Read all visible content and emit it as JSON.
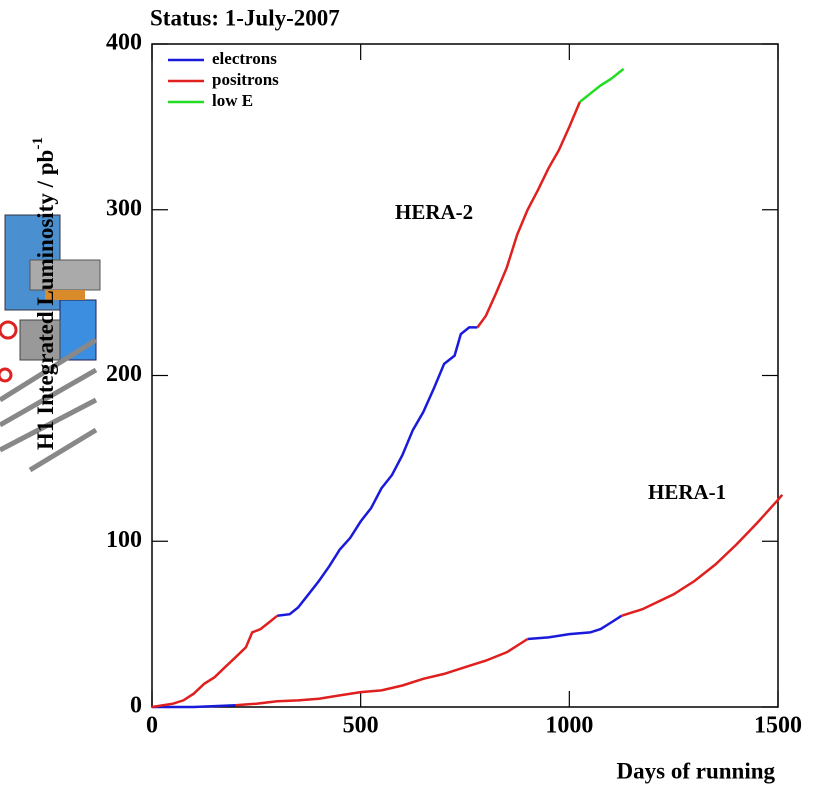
{
  "chart_data": {
    "type": "line",
    "title": "Status:  1-July-2007",
    "ylabel": "H1 Integrated Luminosity / pb",
    "ylabel_superscript": "-1",
    "xlabel": "Days of running",
    "annotations": [
      "HERA-2",
      "HERA-1"
    ],
    "xlim": [
      0,
      1500
    ],
    "ylim": [
      0,
      400
    ],
    "xticks": [
      0,
      500,
      1000,
      1500
    ],
    "yticks": [
      0,
      100,
      200,
      300,
      400
    ],
    "legend": "upper left",
    "series": [
      {
        "name": "electrons",
        "color": "#1a1adb",
        "x": [
          300,
          330,
          350,
          375,
          400,
          425,
          450,
          475,
          500,
          525,
          550,
          575,
          600,
          625,
          650,
          675,
          700,
          725,
          740,
          760,
          780,
          null,
          0,
          100,
          200,
          null,
          900,
          950,
          1000,
          1050,
          1075,
          1100,
          1125
        ],
        "values": [
          55,
          56,
          60,
          68,
          76,
          85,
          95,
          102,
          112,
          120,
          132,
          140,
          152,
          167,
          178,
          192,
          207,
          212,
          225,
          229,
          229,
          null,
          0,
          0,
          1,
          null,
          41,
          42,
          44,
          45,
          47,
          51,
          55
        ]
      },
      {
        "name": "positrons",
        "color": "#e01f1f",
        "x": [
          0,
          25,
          50,
          75,
          100,
          125,
          150,
          175,
          200,
          225,
          240,
          260,
          280,
          300,
          null,
          780,
          800,
          825,
          850,
          875,
          900,
          925,
          950,
          975,
          1000,
          1025,
          null,
          200,
          250,
          300,
          350,
          400,
          450,
          500,
          550,
          600,
          650,
          700,
          750,
          800,
          850,
          900,
          null,
          1125,
          1175,
          1200,
          1250,
          1300,
          1350,
          1400,
          1450,
          1500,
          1510
        ],
        "values": [
          0,
          1,
          2,
          4,
          8,
          14,
          18,
          24,
          30,
          36,
          45,
          47,
          51,
          55,
          null,
          229,
          236,
          250,
          265,
          285,
          300,
          312,
          325,
          336,
          350,
          365,
          null,
          1,
          2,
          3.5,
          4,
          5,
          7,
          9,
          10,
          13,
          17,
          20,
          24,
          28,
          33,
          41,
          null,
          55,
          59,
          62,
          68,
          76,
          86,
          98,
          111,
          125,
          128
        ]
      },
      {
        "name": "low E",
        "color": "#22dd22",
        "x": [
          1025,
          1050,
          1075,
          1100,
          1130
        ],
        "values": [
          365,
          370,
          375,
          379,
          385
        ]
      }
    ]
  }
}
